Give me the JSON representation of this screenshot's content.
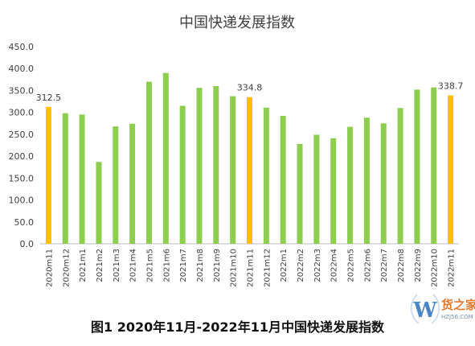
{
  "chart_data": {
    "type": "bar",
    "title": "中国快递发展指数",
    "categories": [
      "2020m11",
      "2020m12",
      "2021m1",
      "2021m2",
      "2021m3",
      "2021m4",
      "2021m5",
      "2021m6",
      "2021m7",
      "2021m8",
      "2021m9",
      "2021m10",
      "2021m11",
      "2021m12",
      "2022m1",
      "2022m2",
      "2022m3",
      "2022m4",
      "2022m5",
      "2022m6",
      "2022m7",
      "2022m8",
      "2022m9",
      "2022m10",
      "2022m11"
    ],
    "values": [
      312.5,
      298,
      295,
      187,
      268,
      274,
      370,
      390,
      315,
      356,
      360,
      337,
      334.8,
      311,
      292,
      228,
      249,
      241,
      267,
      288,
      275,
      310,
      352,
      357,
      338.7
    ],
    "highlight_indices": [
      0,
      12,
      24
    ],
    "data_labels": {
      "0": "312.5",
      "12": "334.8",
      "24": "338.7"
    },
    "yticks": [
      "0.0",
      "50.0",
      "100.0",
      "150.0",
      "200.0",
      "250.0",
      "300.0",
      "350.0",
      "400.0",
      "450.0"
    ],
    "ylim": [
      0,
      450
    ],
    "grid": false,
    "colors": {
      "bar": "#8DCE4F",
      "highlight": "#FFC000",
      "axis": "#BFBFBF",
      "text": "#404040"
    }
  },
  "caption": "图1 2020年11月-2022年11月中国快递发展指数",
  "watermark": {
    "brand": "货之家",
    "domain": "HZJ56.COM",
    "letter": "W"
  }
}
